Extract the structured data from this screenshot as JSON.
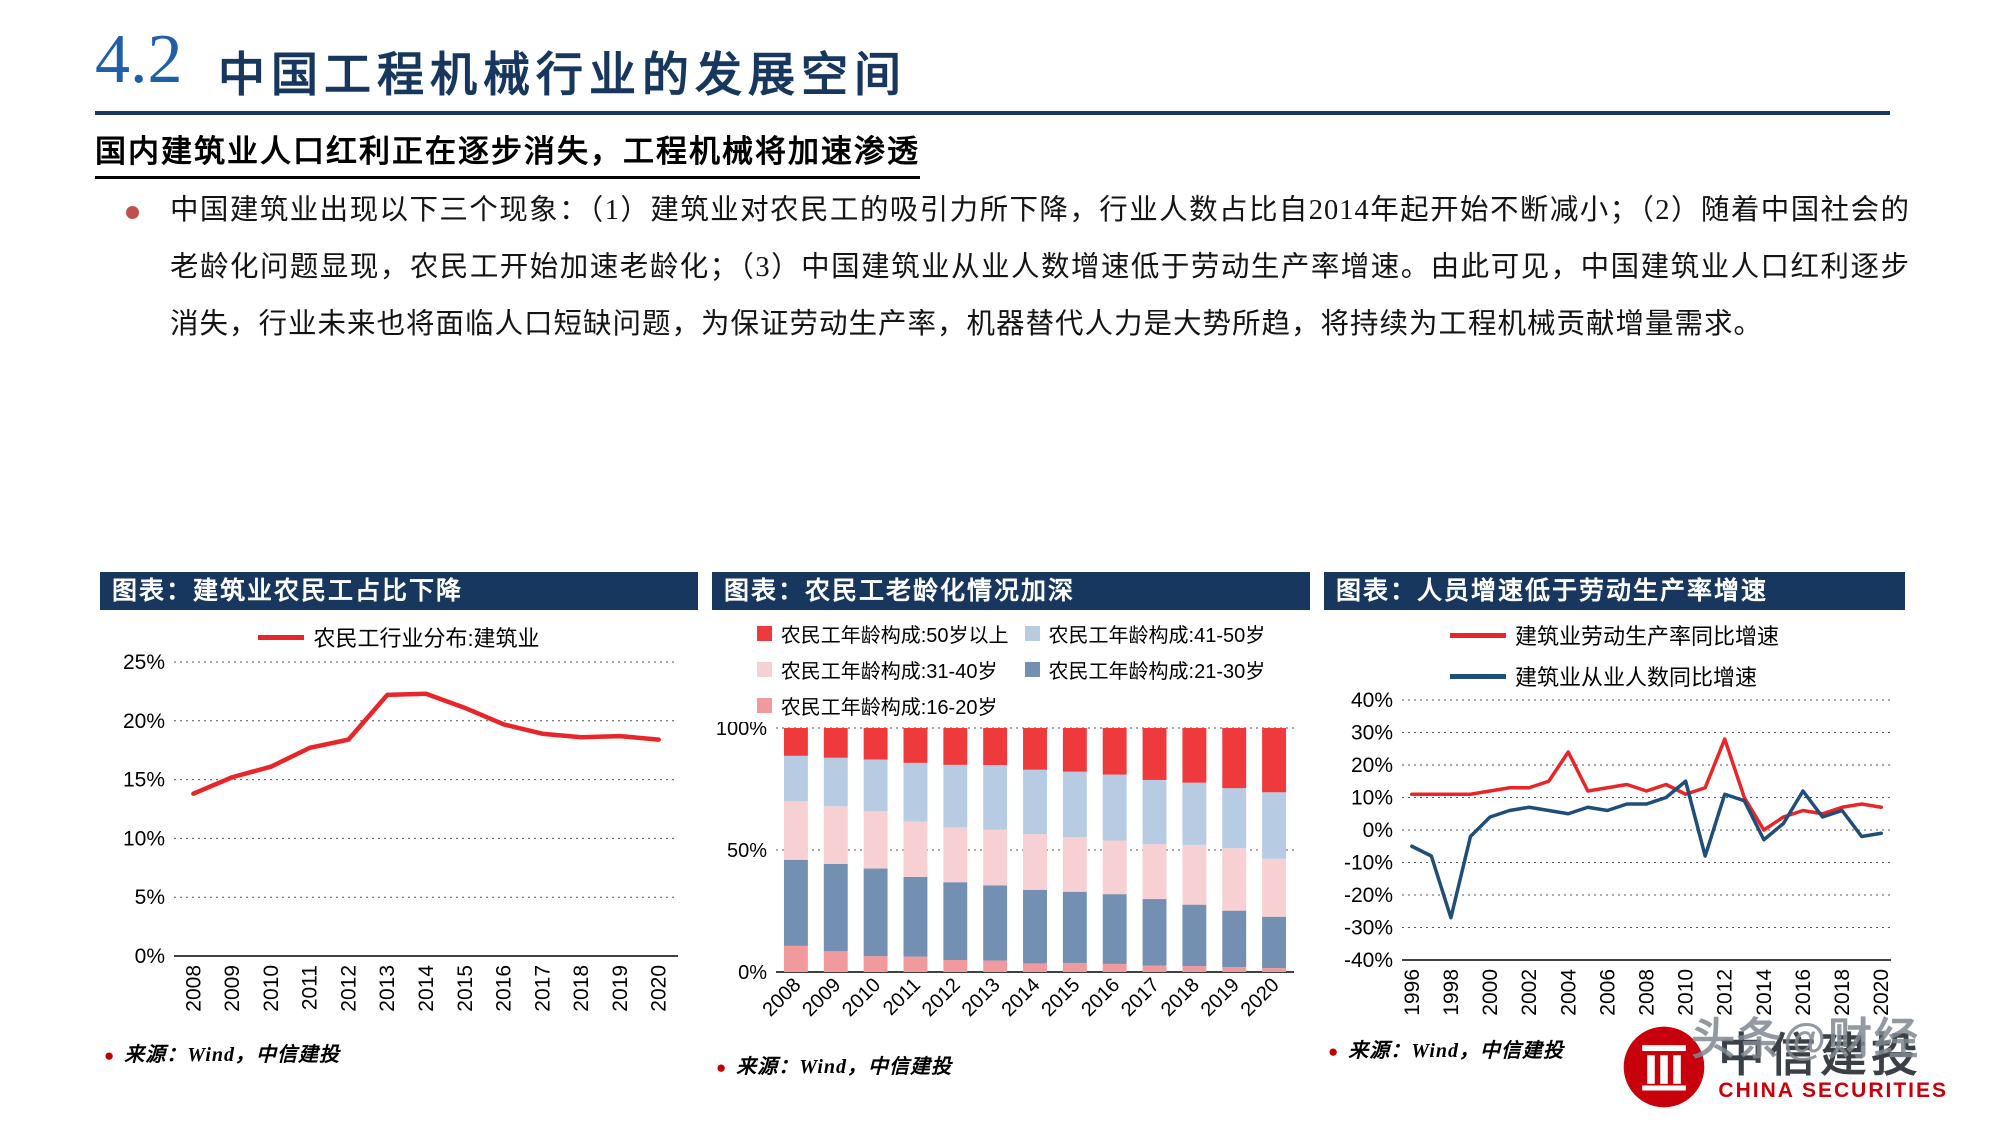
{
  "page": {
    "section_number": "4.2",
    "title": "中国工程机械行业的发展空间",
    "subtitle": "国内建筑业人口红利正在逐步消失，工程机械将加速渗透",
    "bullet_text": "中国建筑业出现以下三个现象：（1）建筑业对农民工的吸引力所下降，行业人数占比自2014年起开始不断减小；（2）随着中国社会的老龄化问题显现，农民工开始加速老龄化；（3）中国建筑业从业人数增速低于劳动生产率增速。由此可见，中国建筑业人口红利逐步消失，行业未来也将面临人口短缺问题，为保证劳动生产率，机器替代人力是大势所趋，将持续为工程机械贡献增量需求。"
  },
  "misc": {
    "bullet": "●"
  },
  "colors": {
    "navy": "#17375e",
    "title_blue": "#1f5fa8",
    "red": "#e8262a",
    "dark_blue_line": "#1f4e79"
  },
  "panels": [
    {
      "header": "图表：建筑业农民工占比下降",
      "source": "来源：Wind，中信建投"
    },
    {
      "header": "图表：农民工老龄化情况加深",
      "source": "来源：Wind，中信建投"
    },
    {
      "header": "图表：人员增速低于劳动生产率增速",
      "source": "来源：Wind，中信建投"
    }
  ],
  "footer": {
    "watermark": "头条@财经",
    "logo_cn": "中信建投",
    "logo_en": "CHINA SECURITIES"
  },
  "chart_data": [
    {
      "type": "line",
      "title": "建筑业农民工占比下降",
      "categories": [
        "2008",
        "2009",
        "2010",
        "2011",
        "2012",
        "2013",
        "2014",
        "2015",
        "2016",
        "2017",
        "2018",
        "2019",
        "2020"
      ],
      "series": [
        {
          "name": "农民工行业分布:建筑业",
          "color": "#e8262a",
          "values": [
            13.8,
            15.2,
            16.1,
            17.7,
            18.4,
            22.2,
            22.3,
            21.1,
            19.7,
            18.9,
            18.6,
            18.7,
            18.4
          ]
        }
      ],
      "ylim": [
        0,
        25
      ],
      "yticks": [
        0,
        5,
        10,
        15,
        20,
        25
      ],
      "ylabel": "",
      "xlabel": "",
      "grid": true,
      "legend_position": "top"
    },
    {
      "type": "bar",
      "subtype": "stacked-100-percent",
      "title": "农民工老龄化情况加深",
      "categories": [
        "2008",
        "2009",
        "2010",
        "2011",
        "2012",
        "2013",
        "2014",
        "2015",
        "2016",
        "2017",
        "2018",
        "2019",
        "2020"
      ],
      "series": [
        {
          "name": "农民工年龄构成:16-20岁",
          "color": "#f19a9e",
          "values": [
            10.7,
            8.5,
            6.5,
            6.3,
            4.9,
            4.7,
            3.5,
            3.7,
            3.3,
            2.6,
            2.4,
            2.0,
            1.6
          ]
        },
        {
          "name": "农民工年龄构成:21-30岁",
          "color": "#7390b2",
          "values": [
            35.3,
            35.8,
            35.9,
            32.7,
            31.9,
            30.8,
            30.2,
            29.2,
            28.6,
            27.3,
            25.2,
            23.1,
            21.1
          ]
        },
        {
          "name": "农民工年龄构成:31-40岁",
          "color": "#f6d0d2",
          "values": [
            24.0,
            23.6,
            23.5,
            22.7,
            22.5,
            22.9,
            22.8,
            22.3,
            22.0,
            22.5,
            24.5,
            25.5,
            23.8
          ]
        },
        {
          "name": "农民工年龄构成:41-50岁",
          "color": "#b7cce3",
          "values": [
            18.6,
            19.9,
            21.2,
            24.0,
            25.6,
            26.4,
            26.4,
            26.9,
            27.0,
            26.3,
            25.5,
            24.6,
            27.3
          ]
        },
        {
          "name": "农民工年龄构成:50岁以上",
          "color": "#ee3a3d",
          "values": [
            11.4,
            12.2,
            12.9,
            14.3,
            15.1,
            15.2,
            17.1,
            17.9,
            19.1,
            21.3,
            22.4,
            24.6,
            26.4
          ]
        }
      ],
      "legend": [
        "农民工年龄构成:50岁以上",
        "农民工年龄构成:41-50岁",
        "农民工年龄构成:31-40岁",
        "农民工年龄构成:21-30岁",
        "农民工年龄构成:16-20岁"
      ],
      "ylim": [
        0,
        100
      ],
      "yticks": [
        0,
        50,
        100
      ],
      "grid": true,
      "legend_position": "top"
    },
    {
      "type": "line",
      "title": "人员增速低于劳动生产率增速",
      "categories": [
        "1996",
        "1997",
        "1998",
        "1999",
        "2000",
        "2001",
        "2002",
        "2003",
        "2004",
        "2005",
        "2006",
        "2007",
        "2008",
        "2009",
        "2010",
        "2011",
        "2012",
        "2013",
        "2014",
        "2015",
        "2016",
        "2017",
        "2018",
        "2019",
        "2020"
      ],
      "x_label_step": 2,
      "series": [
        {
          "name": "建筑业劳动生产率同比增速",
          "color": "#e8262a",
          "values": [
            11,
            11,
            11,
            11,
            12,
            13,
            13,
            15,
            24,
            12,
            13,
            14,
            12,
            14,
            11,
            13,
            28,
            10,
            0,
            4,
            6,
            5,
            7,
            8,
            7
          ]
        },
        {
          "name": "建筑业从业人数同比增速",
          "color": "#1f4e79",
          "values": [
            -5,
            -8,
            -27,
            -2,
            4,
            6,
            7,
            6,
            5,
            7,
            6,
            8,
            8,
            10,
            15,
            -8,
            11,
            9,
            -3,
            2,
            12,
            4,
            6,
            -2,
            -1
          ]
        }
      ],
      "ylim": [
        -40,
        40
      ],
      "yticks": [
        40,
        30,
        20,
        10,
        0,
        -10,
        -20,
        -30,
        -40
      ],
      "grid": true,
      "legend_position": "top"
    }
  ]
}
